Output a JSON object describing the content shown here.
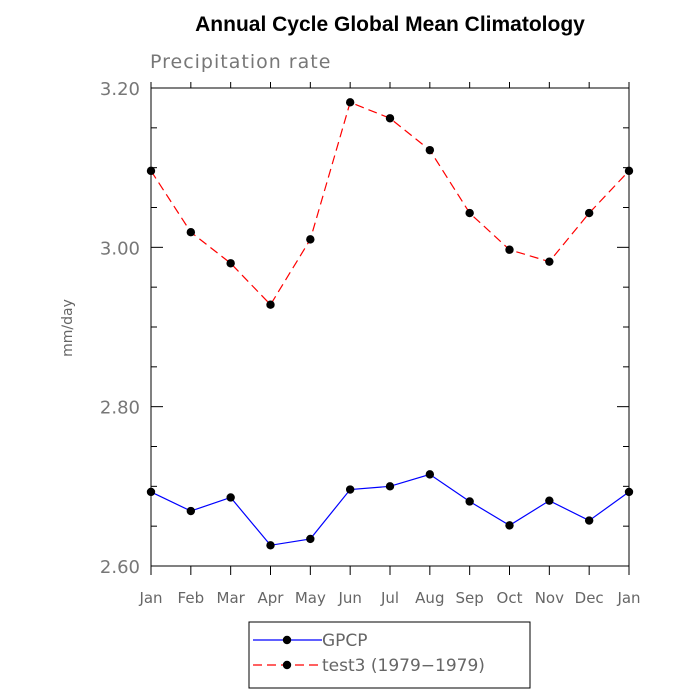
{
  "chart_data": {
    "type": "line",
    "title": "Annual Cycle Global Mean Climatology",
    "subtitle": "Precipitation rate",
    "ylabel": "mm/day",
    "xlabel": "",
    "categories": [
      "Jan",
      "Feb",
      "Mar",
      "Apr",
      "May",
      "Jun",
      "Jul",
      "Aug",
      "Sep",
      "Oct",
      "Nov",
      "Dec",
      "Jan"
    ],
    "ylim": [
      2.6,
      3.2
    ],
    "yticks": [
      "2.60",
      "2.80",
      "3.00",
      "3.20"
    ],
    "legend_position": "bottom-center",
    "series": [
      {
        "name": "GPCP",
        "color": "#0000ff",
        "line_style": "solid",
        "values": [
          2.693,
          2.669,
          2.686,
          2.626,
          2.634,
          2.696,
          2.7,
          2.715,
          2.681,
          2.651,
          2.682,
          2.657,
          2.693
        ]
      },
      {
        "name": "test3 (1979−1979)",
        "color": "#ff0000",
        "line_style": "dashed",
        "values": [
          3.096,
          3.019,
          2.98,
          2.928,
          3.01,
          3.182,
          3.162,
          3.122,
          3.043,
          2.997,
          2.982,
          3.043,
          3.096
        ]
      }
    ]
  }
}
